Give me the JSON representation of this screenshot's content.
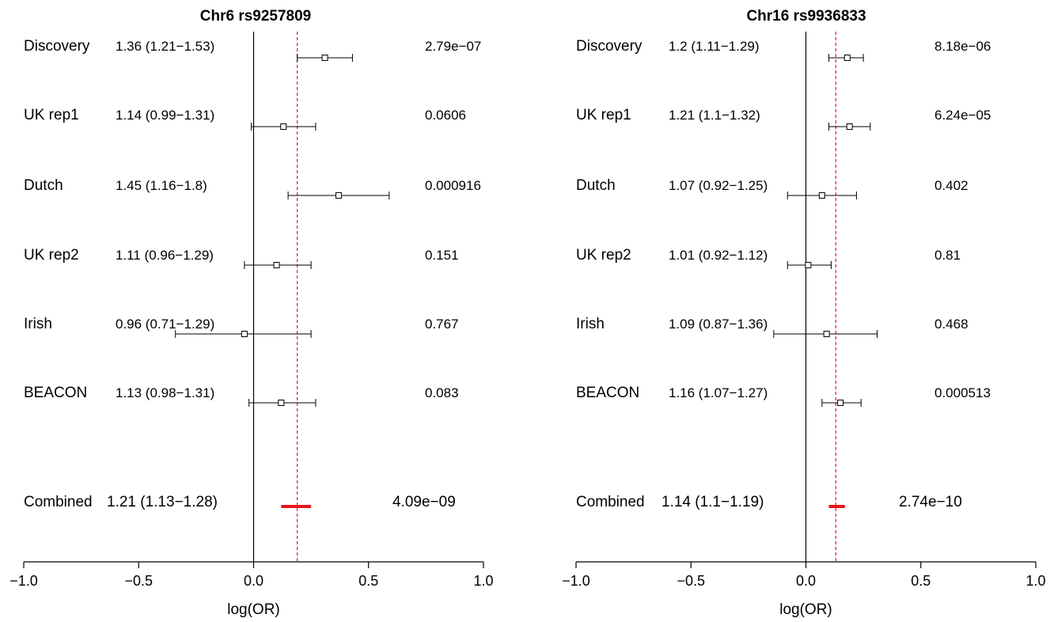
{
  "colors": {
    "ink": "#000000",
    "combined": "#e8141b",
    "reference": "#e8141b"
  },
  "chart_data": [
    {
      "type": "forest",
      "title": "Chr6 rs9257809",
      "xlabel": "log(OR)",
      "xlim": [
        -1.0,
        1.0
      ],
      "xticks": [
        "−1.0",
        "−0.5",
        "0.0",
        "0.5",
        "1.0"
      ],
      "xtick_values": [
        -1.0,
        -0.5,
        0.0,
        0.5,
        1.0
      ],
      "reference_line_logor": 0.19,
      "studies": [
        {
          "name": "Discovery",
          "or_text": "1.36 (1.21−1.53)",
          "p": "2.79e−07",
          "logor": 0.31,
          "lo": 0.19,
          "hi": 0.43
        },
        {
          "name": "UK rep1",
          "or_text": "1.14 (0.99−1.31)",
          "p": "0.0606",
          "logor": 0.13,
          "lo": -0.01,
          "hi": 0.27
        },
        {
          "name": "Dutch",
          "or_text": "1.45 (1.16−1.8)",
          "p": "0.000916",
          "logor": 0.37,
          "lo": 0.15,
          "hi": 0.59
        },
        {
          "name": "UK rep2",
          "or_text": "1.11 (0.96−1.29)",
          "p": "0.151",
          "logor": 0.1,
          "lo": -0.04,
          "hi": 0.25
        },
        {
          "name": "Irish",
          "or_text": "0.96 (0.71−1.29)",
          "p": "0.767",
          "logor": -0.04,
          "lo": -0.34,
          "hi": 0.25
        },
        {
          "name": "BEACON",
          "or_text": "1.13 (0.98−1.31)",
          "p": "0.083",
          "logor": 0.12,
          "lo": -0.02,
          "hi": 0.27
        }
      ],
      "combined": {
        "name": "Combined",
        "or_text": "1.21 (1.13−1.28)",
        "p": "4.09e−09",
        "logor": 0.19,
        "lo": 0.12,
        "hi": 0.25
      }
    },
    {
      "type": "forest",
      "title": "Chr16 rs9936833",
      "xlabel": "log(OR)",
      "xlim": [
        -1.0,
        1.0
      ],
      "xticks": [
        "−1.0",
        "−0.5",
        "0.0",
        "0.5",
        "1.0"
      ],
      "xtick_values": [
        -1.0,
        -0.5,
        0.0,
        0.5,
        1.0
      ],
      "reference_line_logor": 0.13,
      "studies": [
        {
          "name": "Discovery",
          "or_text": "1.2 (1.11−1.29)",
          "p": "8.18e−06",
          "logor": 0.18,
          "lo": 0.1,
          "hi": 0.25
        },
        {
          "name": "UK rep1",
          "or_text": "1.21 (1.1−1.32)",
          "p": "6.24e−05",
          "logor": 0.19,
          "lo": 0.1,
          "hi": 0.28
        },
        {
          "name": "Dutch",
          "or_text": "1.07 (0.92−1.25)",
          "p": "0.402",
          "logor": 0.07,
          "lo": -0.08,
          "hi": 0.22
        },
        {
          "name": "UK rep2",
          "or_text": "1.01 (0.92−1.12)",
          "p": "0.81",
          "logor": 0.01,
          "lo": -0.08,
          "hi": 0.11
        },
        {
          "name": "Irish",
          "or_text": "1.09 (0.87−1.36)",
          "p": "0.468",
          "logor": 0.09,
          "lo": -0.14,
          "hi": 0.31
        },
        {
          "name": "BEACON",
          "or_text": "1.16 (1.07−1.27)",
          "p": "0.000513",
          "logor": 0.15,
          "lo": 0.07,
          "hi": 0.24
        }
      ],
      "combined": {
        "name": "Combined",
        "or_text": "1.14 (1.1−1.19)",
        "p": "2.74e−10",
        "logor": 0.13,
        "lo": 0.1,
        "hi": 0.17
      }
    }
  ]
}
